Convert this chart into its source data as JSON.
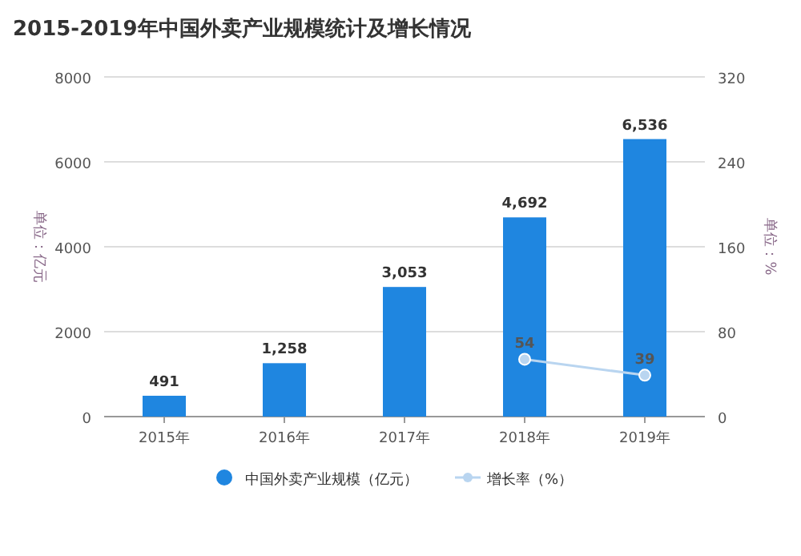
{
  "chart_data": {
    "type": "bar",
    "title": "2015-2019年中国外卖产业规模统计及增长情况",
    "ylabel": "单位：亿元",
    "y2label": "单位：%",
    "categories": [
      "2015年",
      "2016年",
      "2017年",
      "2018年",
      "2019年"
    ],
    "series": [
      {
        "name": "中国外卖产业规模（亿元）",
        "color": "#1f86e0",
        "values": [
          491,
          1258,
          3053,
          4692,
          6536
        ],
        "value_labels": [
          "491",
          "1,258",
          "3,053",
          "4,692",
          "6,536"
        ]
      },
      {
        "name": "增长率（%）",
        "type": "line",
        "axis": "y2",
        "color": "#b9d5f0",
        "marker": "circle",
        "values": [
          null,
          null,
          null,
          54,
          39
        ],
        "value_labels": [
          null,
          null,
          null,
          "54",
          "39"
        ]
      }
    ],
    "ylim": [
      0,
      8000
    ],
    "yticks": [
      0,
      2000,
      4000,
      6000,
      8000
    ],
    "y2lim": [
      0,
      320
    ],
    "y2ticks": [
      0,
      80,
      160,
      240,
      320
    ],
    "grid": "y",
    "legend": "bottom"
  }
}
